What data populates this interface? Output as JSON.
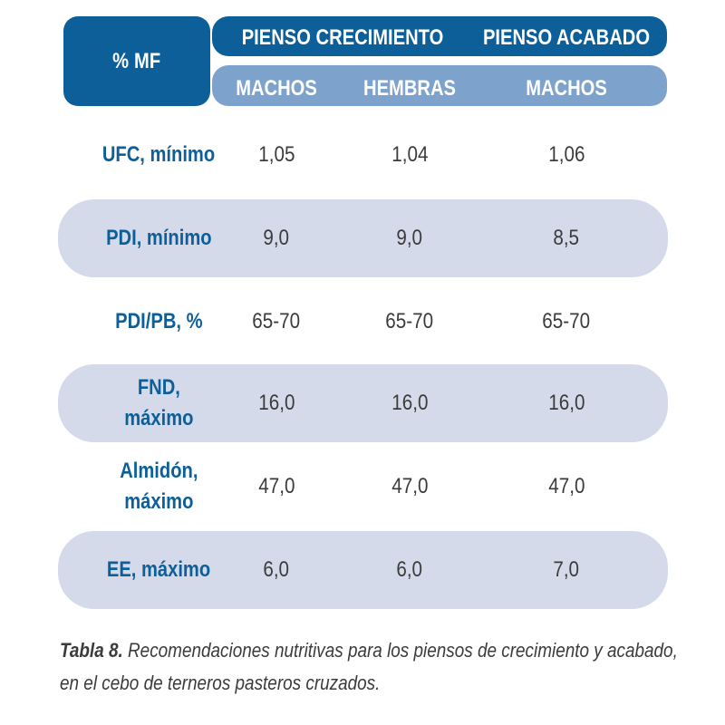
{
  "header": {
    "corner_label": "% MF",
    "groups": [
      "PIENSO CRECIMIENTO",
      "PIENSO ACABADO"
    ],
    "subheaders": [
      "MACHOS",
      "HEMBRAS",
      "MACHOS"
    ]
  },
  "rows": [
    {
      "label": "UFC, mínimo",
      "values": [
        "1,05",
        "1,04",
        "1,06"
      ]
    },
    {
      "label": "PDI, mínimo",
      "values": [
        "9,0",
        "9,0",
        "8,5"
      ]
    },
    {
      "label": "PDI/PB, %",
      "values": [
        "65-70",
        "65-70",
        "65-70"
      ]
    },
    {
      "label": "FND,\nmáximo",
      "values": [
        "16,0",
        "16,0",
        "16,0"
      ]
    },
    {
      "label": "Almidón,\nmáximo",
      "values": [
        "47,0",
        "47,0",
        "47,0"
      ]
    },
    {
      "label": "EE, máximo",
      "values": [
        "6,0",
        "6,0",
        "7,0"
      ]
    }
  ],
  "caption": {
    "label": "Tabla 8.",
    "text": " Recomendaciones nutritivas para los piensos de crecimiento y acabado, en el cebo de terneros pasteros cruzados."
  },
  "colors": {
    "header_dark": "#0d5f99",
    "header_light": "#7da3cd",
    "row_shade": "#d5daeb",
    "label_text": "#0d5f99",
    "value_text": "#3b3b3b"
  }
}
